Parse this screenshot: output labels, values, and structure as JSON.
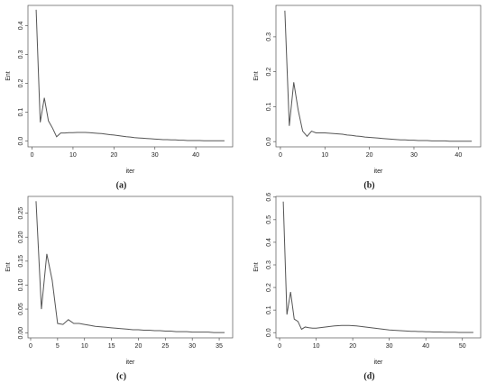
{
  "chart_data": [
    {
      "type": "line",
      "caption": "(a)",
      "xlabel": "iter",
      "ylabel": "Ent",
      "color": "#555555",
      "x": [
        1,
        2,
        3,
        4,
        5,
        6,
        7,
        8,
        9,
        10,
        11,
        12,
        13,
        14,
        15,
        16,
        17,
        18,
        19,
        20,
        21,
        22,
        23,
        24,
        25,
        26,
        27,
        28,
        29,
        30,
        31,
        32,
        33,
        34,
        35,
        36,
        37,
        38,
        39,
        40,
        41,
        42,
        43,
        44,
        45,
        46,
        47
      ],
      "values": [
        0.455,
        0.065,
        0.15,
        0.07,
        0.045,
        0.015,
        0.028,
        0.028,
        0.029,
        0.029,
        0.03,
        0.03,
        0.03,
        0.029,
        0.028,
        0.027,
        0.026,
        0.024,
        0.022,
        0.021,
        0.019,
        0.017,
        0.015,
        0.014,
        0.012,
        0.011,
        0.01,
        0.009,
        0.008,
        0.007,
        0.006,
        0.005,
        0.005,
        0.004,
        0.004,
        0.003,
        0.003,
        0.002,
        0.002,
        0.002,
        0.002,
        0.001,
        0.001,
        0.001,
        0.001,
        0.001,
        0.001
      ],
      "xlim": [
        -1,
        49
      ],
      "ylim": [
        -0.02,
        0.47
      ],
      "xticks": [
        0,
        10,
        20,
        30,
        40
      ],
      "yticks": [
        {
          "value": 0,
          "label": "0.0"
        },
        0.1,
        0.2,
        0.3,
        0.4
      ]
    },
    {
      "type": "line",
      "caption": "(b)",
      "xlabel": "iter",
      "ylabel": "Ent",
      "color": "#555555",
      "x": [
        1,
        2,
        3,
        4,
        5,
        6,
        7,
        8,
        9,
        10,
        11,
        12,
        13,
        14,
        15,
        16,
        17,
        18,
        19,
        20,
        21,
        22,
        23,
        24,
        25,
        26,
        27,
        28,
        29,
        30,
        31,
        32,
        33,
        34,
        35,
        36,
        37,
        38,
        39,
        40,
        41,
        42,
        43
      ],
      "values": [
        0.375,
        0.045,
        0.17,
        0.09,
        0.03,
        0.015,
        0.03,
        0.025,
        0.025,
        0.025,
        0.024,
        0.023,
        0.022,
        0.021,
        0.019,
        0.018,
        0.016,
        0.015,
        0.013,
        0.012,
        0.011,
        0.01,
        0.009,
        0.008,
        0.007,
        0.006,
        0.005,
        0.005,
        0.004,
        0.004,
        0.003,
        0.003,
        0.003,
        0.002,
        0.002,
        0.002,
        0.002,
        0.001,
        0.001,
        0.001,
        0.001,
        0.001,
        0.001
      ],
      "xlim": [
        -1,
        45
      ],
      "ylim": [
        -0.015,
        0.39
      ],
      "xticks": [
        0,
        10,
        20,
        30,
        40
      ],
      "yticks": [
        {
          "value": 0,
          "label": "0.0"
        },
        0.1,
        0.2,
        0.3
      ]
    },
    {
      "type": "line",
      "caption": "(c)",
      "xlabel": "iter",
      "ylabel": "Ent",
      "color": "#555555",
      "x": [
        1,
        2,
        3,
        4,
        5,
        6,
        7,
        8,
        9,
        10,
        11,
        12,
        13,
        14,
        15,
        16,
        17,
        18,
        19,
        20,
        21,
        22,
        23,
        24,
        25,
        26,
        27,
        28,
        29,
        30,
        31,
        32,
        33,
        34,
        35,
        36
      ],
      "values": [
        0.275,
        0.05,
        0.165,
        0.11,
        0.02,
        0.018,
        0.028,
        0.02,
        0.02,
        0.018,
        0.016,
        0.014,
        0.013,
        0.012,
        0.011,
        0.01,
        0.009,
        0.008,
        0.007,
        0.007,
        0.006,
        0.006,
        0.005,
        0.005,
        0.004,
        0.004,
        0.003,
        0.003,
        0.003,
        0.002,
        0.002,
        0.002,
        0.002,
        0.001,
        0.001,
        0.001
      ],
      "xlim": [
        -0.5,
        37.5
      ],
      "ylim": [
        -0.01,
        0.285
      ],
      "xticks": [
        0,
        5,
        10,
        15,
        20,
        25,
        30,
        35
      ],
      "yticks": [
        {
          "value": 0,
          "label": "0.00"
        },
        0.05,
        {
          "value": 0.1,
          "label": "0.10"
        },
        0.15,
        {
          "value": 0.2,
          "label": "0.20"
        },
        0.25
      ]
    },
    {
      "type": "line",
      "caption": "(d)",
      "xlabel": "iter",
      "ylabel": "Ent",
      "color": "#555555",
      "x": [
        1,
        2,
        3,
        4,
        5,
        6,
        7,
        8,
        9,
        10,
        11,
        12,
        13,
        14,
        15,
        16,
        17,
        18,
        19,
        20,
        21,
        22,
        23,
        24,
        25,
        26,
        27,
        28,
        29,
        30,
        31,
        32,
        33,
        34,
        35,
        36,
        37,
        38,
        39,
        40,
        41,
        42,
        43,
        44,
        45,
        46,
        47,
        48,
        49,
        50,
        51,
        52,
        53
      ],
      "values": [
        0.58,
        0.08,
        0.18,
        0.06,
        0.05,
        0.015,
        0.025,
        0.022,
        0.02,
        0.02,
        0.022,
        0.024,
        0.026,
        0.028,
        0.03,
        0.031,
        0.032,
        0.032,
        0.032,
        0.031,
        0.03,
        0.028,
        0.026,
        0.024,
        0.022,
        0.02,
        0.018,
        0.016,
        0.014,
        0.012,
        0.011,
        0.01,
        0.009,
        0.008,
        0.007,
        0.006,
        0.006,
        0.005,
        0.005,
        0.004,
        0.004,
        0.003,
        0.003,
        0.003,
        0.002,
        0.002,
        0.002,
        0.002,
        0.001,
        0.001,
        0.001,
        0.001,
        0.001
      ],
      "xlim": [
        -1,
        55
      ],
      "ylim": [
        -0.023,
        0.603
      ],
      "xticks": [
        0,
        10,
        20,
        30,
        40,
        50
      ],
      "yticks": [
        {
          "value": 0,
          "label": "0.0"
        },
        0.1,
        0.2,
        0.3,
        0.4,
        0.5,
        0.6
      ]
    }
  ]
}
